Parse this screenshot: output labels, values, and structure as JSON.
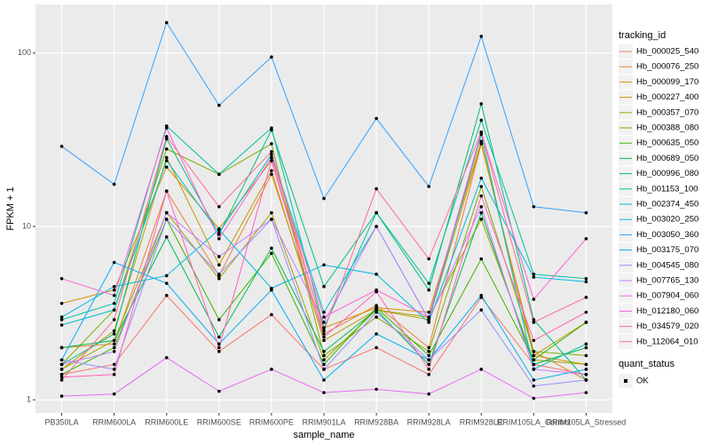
{
  "chart_data": {
    "type": "line",
    "x_label": "sample_name",
    "y_label": "FPKM + 1",
    "log_y": true,
    "grid": true,
    "legend_position": "right",
    "legend_title": "tracking_id",
    "point_color": "#000000",
    "shape_legend": {
      "title": "quant_status",
      "labels": [
        "OK"
      ]
    },
    "categories": [
      "PB350LA",
      "RRIM600LA",
      "RRIM600LE",
      "RRIM600SE",
      "RRIM600PE",
      "RRIM901LA",
      "RRIM928BA",
      "RRIM928LA",
      "RRIM928LE",
      "RRIM105LA_Control",
      "RRIM105LA_Stressed"
    ],
    "ylim": [
      0.84,
      191
    ],
    "yticks": [
      1,
      10,
      100
    ],
    "series": [
      {
        "name": "Hb_000025_540",
        "color": "#F8766D",
        "values": [
          1.4,
          1.6,
          4,
          1.9,
          3.1,
          1.5,
          2.0,
          1.4,
          3.9,
          1.6,
          1.4
        ]
      },
      {
        "name": "Hb_000076_250",
        "color": "#EA8331",
        "values": [
          2.0,
          2.1,
          16,
          5.2,
          20,
          2.4,
          3.5,
          2.0,
          30,
          1.9,
          1.3
        ]
      },
      {
        "name": "Hb_000099_170",
        "color": "#D89000",
        "values": [
          3.6,
          4.3,
          22,
          9.7,
          24,
          2.6,
          3.4,
          3.2,
          31,
          1.8,
          1.6
        ]
      },
      {
        "name": "Hb_000227_400",
        "color": "#C09B00",
        "values": [
          1.5,
          2.5,
          25,
          6,
          21,
          2.2,
          3.3,
          2.9,
          30,
          1.8,
          2.8
        ]
      },
      {
        "name": "Hb_000357_070",
        "color": "#A3A500",
        "values": [
          1.5,
          2.2,
          12,
          5,
          12,
          1.7,
          3.3,
          3.0,
          11,
          1.7,
          1.6
        ]
      },
      {
        "name": "Hb_000388_080",
        "color": "#7CAE00",
        "values": [
          1.6,
          3.3,
          28,
          20,
          30,
          1.8,
          3.0,
          1.9,
          17,
          1.9,
          1.8
        ]
      },
      {
        "name": "Hb_000635_050",
        "color": "#39B600",
        "values": [
          1.4,
          2.0,
          11,
          2.9,
          7,
          1.6,
          3.4,
          1.8,
          6.5,
          1.7,
          2.8
        ]
      },
      {
        "name": "Hb_000689_050",
        "color": "#00BB4E",
        "values": [
          2.0,
          2.2,
          8.7,
          2.3,
          7.5,
          1.9,
          3.3,
          1.6,
          12,
          1.6,
          2.0
        ]
      },
      {
        "name": "Hb_000996_080",
        "color": "#00BF7D",
        "values": [
          1.6,
          2.4,
          32,
          9,
          36,
          4.5,
          12,
          4.3,
          51,
          2.9,
          1.3
        ]
      },
      {
        "name": "Hb_001153_100",
        "color": "#00C1A3",
        "values": [
          2.9,
          3.6,
          38,
          20,
          37,
          2.6,
          12,
          4.7,
          41,
          5.3,
          5.0
        ]
      },
      {
        "name": "Hb_002374_450",
        "color": "#00BFC4",
        "values": [
          2.7,
          3.3,
          24,
          9.2,
          26,
          3.2,
          10,
          2.9,
          34,
          1.5,
          2.1
        ]
      },
      {
        "name": "Hb_003020_250",
        "color": "#00BAE0",
        "values": [
          3.0,
          4.5,
          5.2,
          9.6,
          4.4,
          6,
          5.3,
          2.8,
          19,
          5.1,
          4.8
        ]
      },
      {
        "name": "Hb_003050_360",
        "color": "#35A2FF",
        "values": [
          29,
          17.5,
          150,
          50,
          95,
          14.5,
          42,
          17,
          125,
          13,
          12
        ]
      },
      {
        "name": "Hb_003175_070",
        "color": "#00B0F6",
        "values": [
          1.7,
          6.2,
          4.7,
          2.1,
          4.3,
          1.3,
          2.4,
          1.7,
          4,
          1.3,
          1.5
        ]
      },
      {
        "name": "Hb_004545_080",
        "color": "#9590FF",
        "values": [
          1.7,
          1.5,
          11,
          5.3,
          11,
          1.5,
          3.2,
          1.7,
          3.3,
          1.2,
          1.3
        ]
      },
      {
        "name": "Hb_007765_130",
        "color": "#C77CFF",
        "values": [
          1.6,
          1.9,
          12,
          6.7,
          11,
          2.8,
          10,
          2.9,
          13,
          1.5,
          1.4
        ]
      },
      {
        "name": "Hb_007904_060",
        "color": "#E76BF3",
        "values": [
          1.05,
          1.08,
          1.75,
          1.12,
          1.5,
          1.1,
          1.15,
          1.08,
          1.5,
          1.02,
          1.1
        ]
      },
      {
        "name": "Hb_012180_060",
        "color": "#FA62DB",
        "values": [
          5,
          4,
          37,
          8.5,
          25,
          3,
          4.3,
          3,
          35,
          3.8,
          8.5
        ]
      },
      {
        "name": "Hb_034579_020",
        "color": "#FF62BC",
        "values": [
          1.35,
          1.4,
          16,
          2.0,
          24,
          2.3,
          4.2,
          1.5,
          15,
          2.2,
          3.2
        ]
      },
      {
        "name": "Hb_112064_010",
        "color": "#FF6C91",
        "values": [
          1.3,
          2.9,
          33,
          13,
          27,
          2.5,
          16.5,
          6.5,
          35,
          2.8,
          3.9
        ]
      }
    ]
  }
}
